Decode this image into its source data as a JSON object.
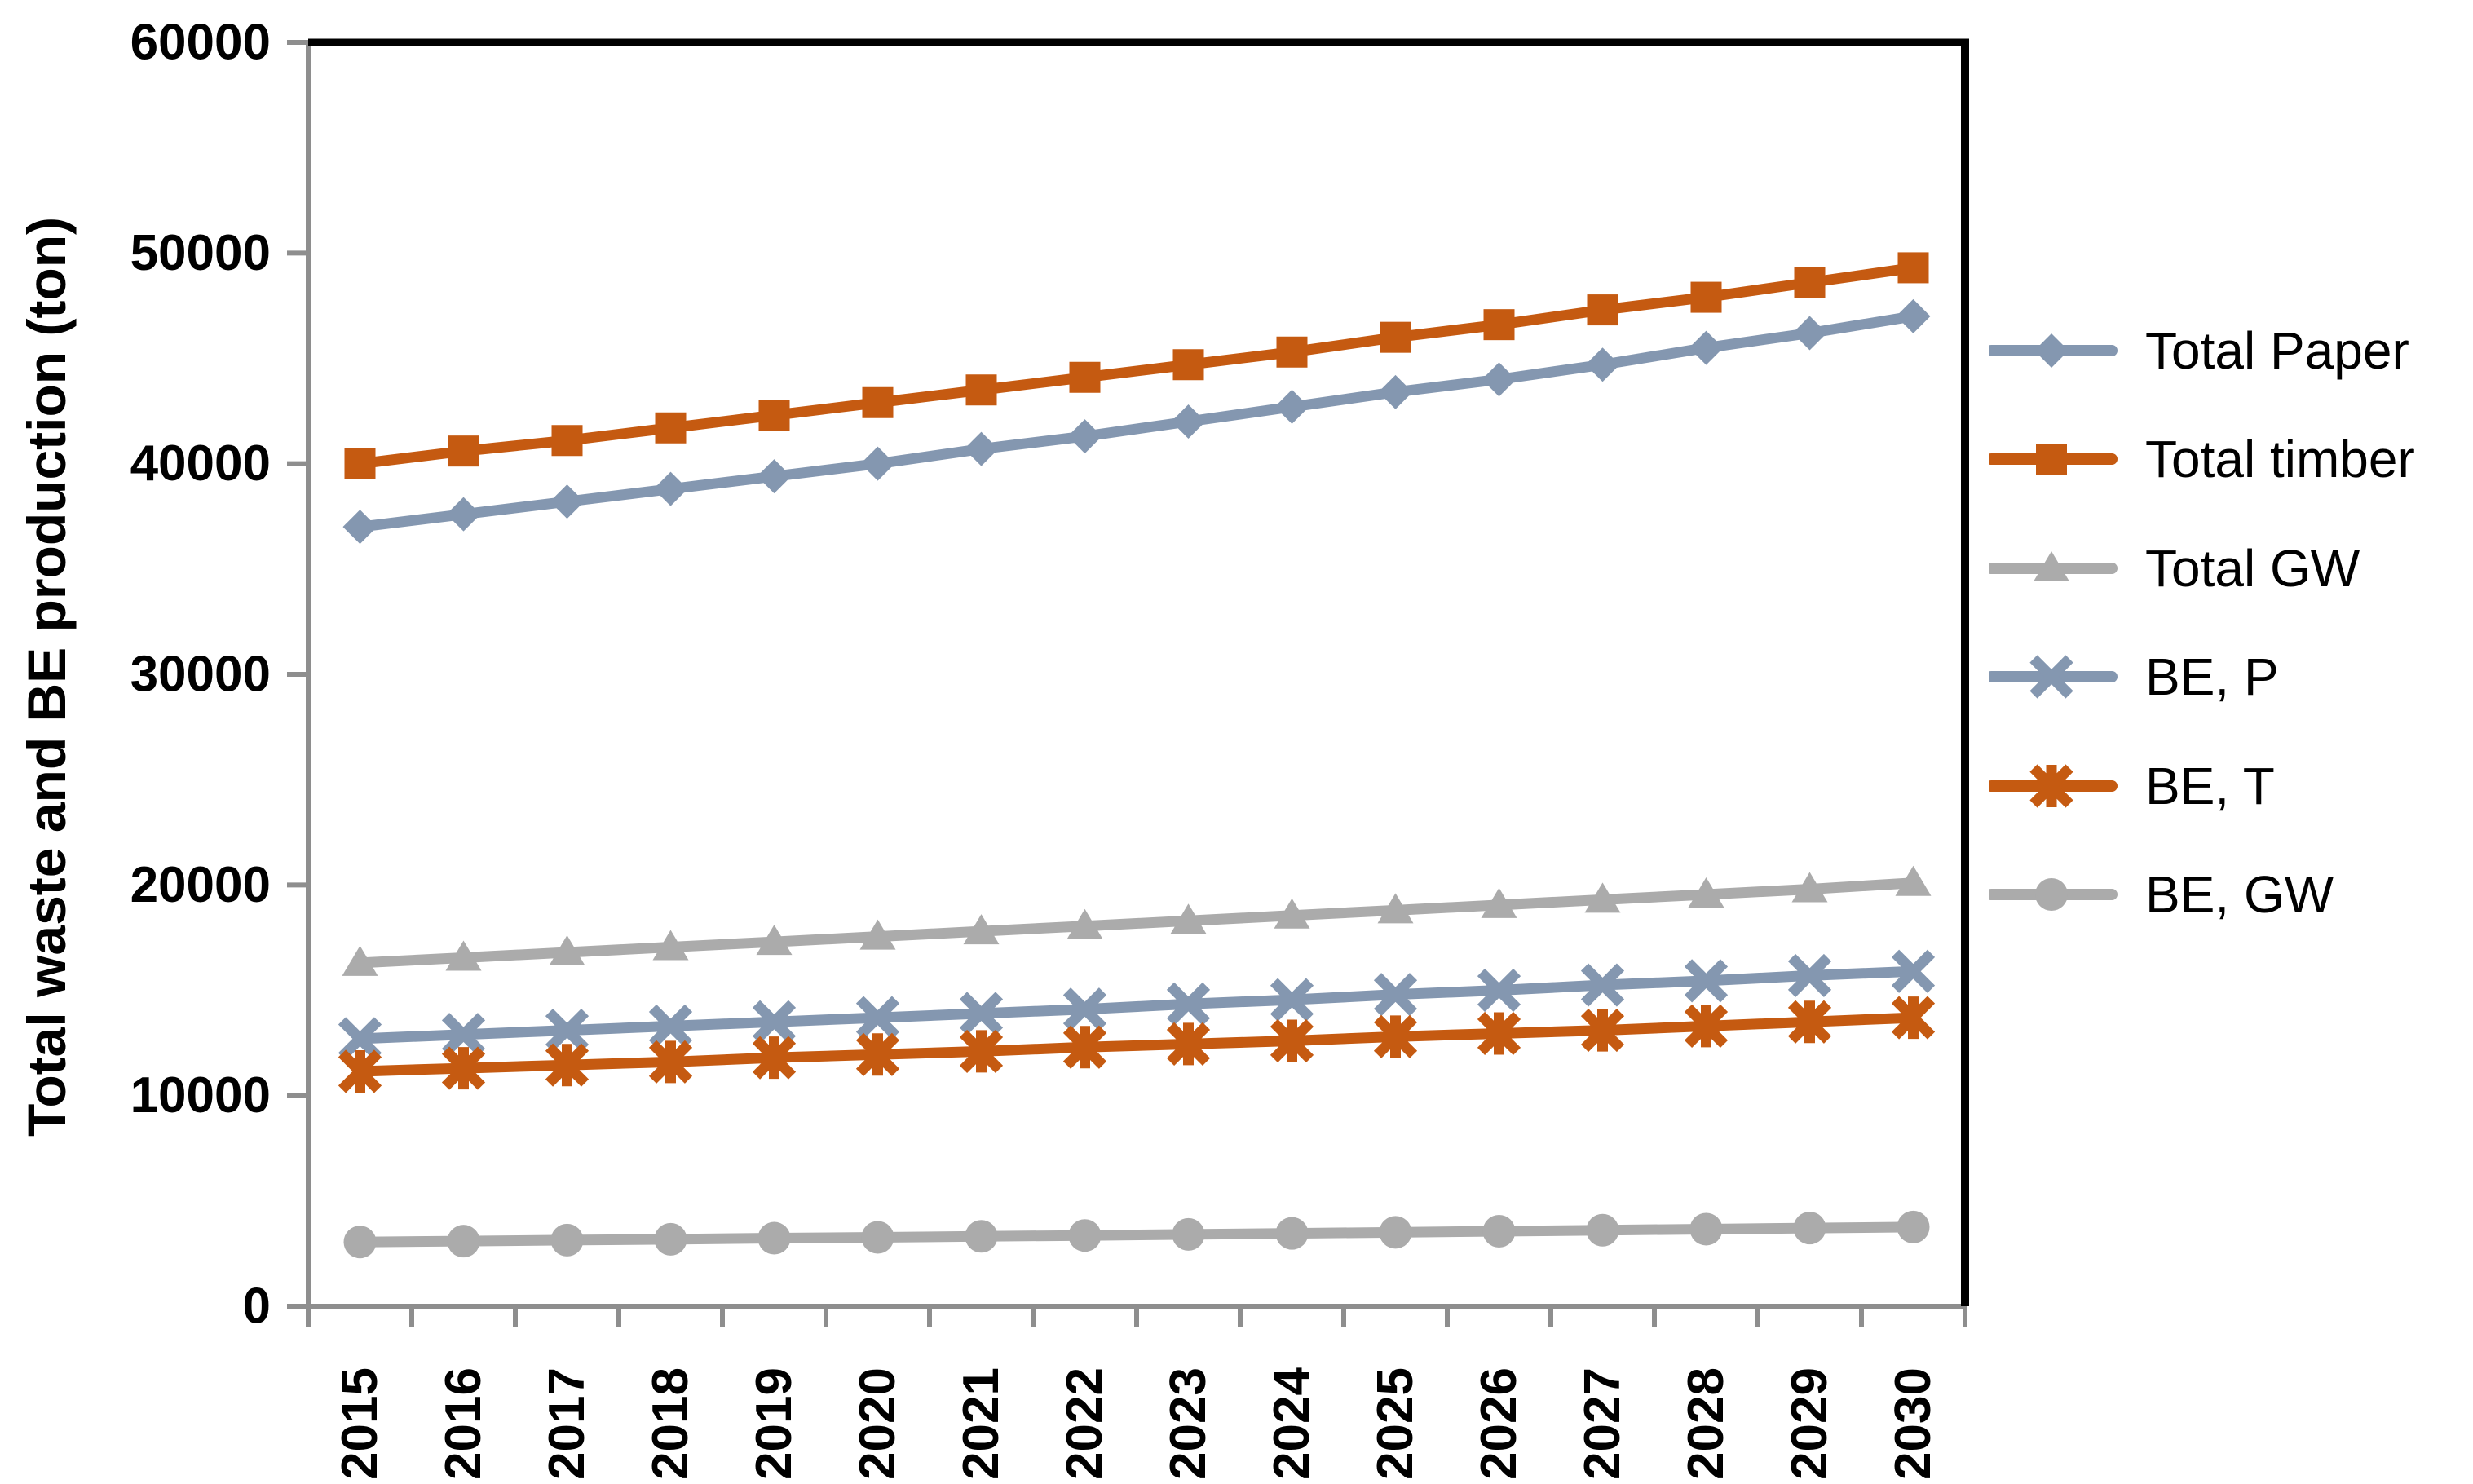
{
  "chart_data": {
    "type": "line",
    "title": "",
    "xlabel": "",
    "ylabel": "Total waste and BE production (ton)",
    "ylim": [
      0,
      60000
    ],
    "ytick_step": 10000,
    "yticks": [
      0,
      10000,
      20000,
      30000,
      40000,
      50000,
      60000
    ],
    "grid": false,
    "legend_position": "right",
    "categories": [
      "2015",
      "2016",
      "2017",
      "2018",
      "2019",
      "2020",
      "2021",
      "2022",
      "2023",
      "2024",
      "2025",
      "2026",
      "2027",
      "2028",
      "2029",
      "2030"
    ],
    "series": [
      {
        "name": "Total Paper",
        "color": "#8497B0",
        "marker": "diamond",
        "values": [
          37000,
          37600,
          38200,
          38800,
          39400,
          40000,
          40700,
          41300,
          42000,
          42700,
          43400,
          44000,
          44700,
          45500,
          46200,
          47000
        ]
      },
      {
        "name": "Total timber",
        "color": "#C55A11",
        "marker": "square",
        "values": [
          40000,
          40600,
          41100,
          41700,
          42300,
          42900,
          43500,
          44100,
          44700,
          45300,
          46000,
          46600,
          47300,
          47900,
          48600,
          49300
        ]
      },
      {
        "name": "Total GW",
        "color": "#ABABAB",
        "marker": "triangle",
        "values": [
          16300,
          16550,
          16800,
          17050,
          17300,
          17550,
          17800,
          18050,
          18300,
          18550,
          18800,
          19050,
          19300,
          19550,
          19800,
          20100
        ]
      },
      {
        "name": "BE, P",
        "color": "#8497B0",
        "marker": "x",
        "values": [
          12700,
          12900,
          13100,
          13300,
          13500,
          13700,
          13900,
          14100,
          14350,
          14550,
          14800,
          15000,
          15250,
          15450,
          15700,
          15900
        ]
      },
      {
        "name": "BE, T",
        "color": "#C55A11",
        "marker": "asterisk",
        "values": [
          11150,
          11300,
          11450,
          11600,
          11800,
          11950,
          12100,
          12300,
          12450,
          12600,
          12800,
          12950,
          13100,
          13300,
          13500,
          13700
        ]
      },
      {
        "name": "BE, GW",
        "color": "#ABABAB",
        "marker": "circle",
        "values": [
          3050,
          3090,
          3140,
          3180,
          3230,
          3270,
          3320,
          3360,
          3410,
          3460,
          3510,
          3560,
          3610,
          3660,
          3710,
          3760
        ]
      }
    ],
    "axis_color": "#8E8E8E",
    "border_color": "#000000",
    "text_color": "#000000"
  }
}
